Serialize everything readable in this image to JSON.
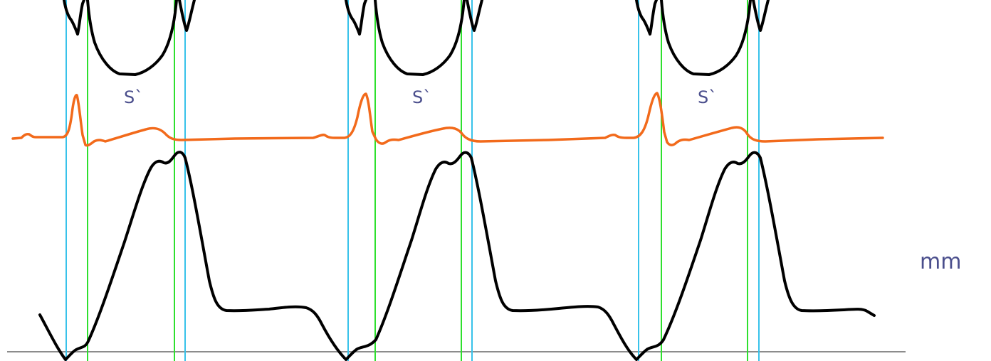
{
  "annotations": {
    "wave_label": "S`",
    "unit": "mm"
  },
  "colors": {
    "background": "#ffffff",
    "interval_marker_a": "#38c2ea",
    "interval_marker_b": "#2ee02e",
    "ecg_trace": "#f26a1b",
    "mechanical_trace": "#000000",
    "baseline": "#8c8c8c",
    "label_text": "#4a4e8c"
  }
}
